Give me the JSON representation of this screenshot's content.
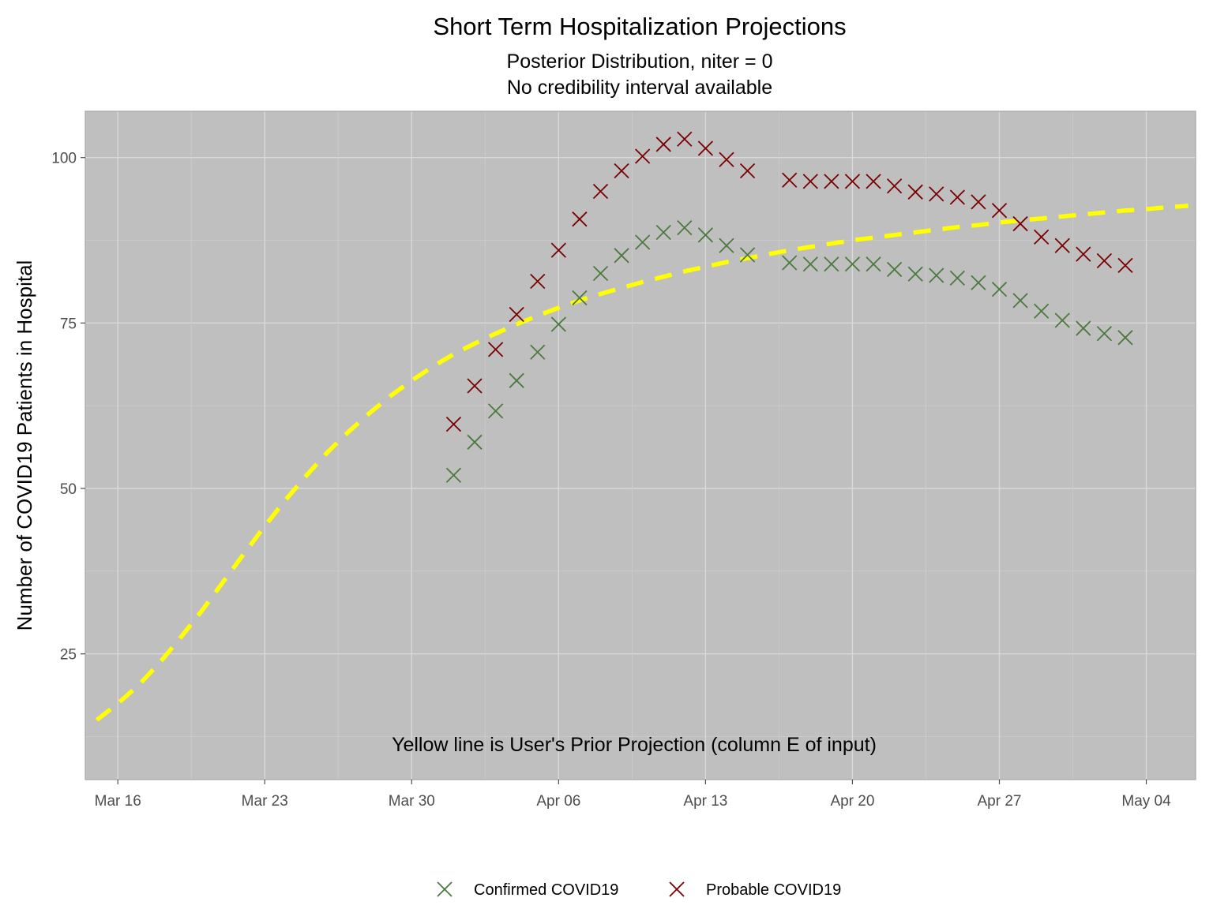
{
  "chart_data": {
    "type": "scatter",
    "title": "Short Term Hospitalization Projections",
    "subtitle_lines": [
      "Posterior Distribution, niter = 0",
      "No credibility interval available"
    ],
    "xlabel": "",
    "ylabel": "Number of COVID19 Patients in Hospital",
    "annotation": "Yellow line is User's Prior Projection (column E of input)",
    "x_tick_labels": [
      "Mar 16",
      "Mar 23",
      "Mar 30",
      "Apr 06",
      "Apr 13",
      "Apr 20",
      "Apr 27",
      "May 04"
    ],
    "x_tick_dates": [
      "2020-03-16",
      "2020-03-23",
      "2020-03-30",
      "2020-04-06",
      "2020-04-13",
      "2020-04-20",
      "2020-04-27",
      "2020-05-04"
    ],
    "y_ticks": [
      25,
      50,
      75,
      100
    ],
    "xlim": [
      "2020-03-15",
      "2020-05-06"
    ],
    "ylim": [
      6,
      107
    ],
    "grid": true,
    "legend_position": "bottom",
    "series": [
      {
        "name": "Confirmed COVID19",
        "marker": "x",
        "color": "#4a7a3d",
        "points": [
          [
            "2020-04-01",
            52
          ],
          [
            "2020-04-02",
            57
          ],
          [
            "2020-04-03",
            61.7
          ],
          [
            "2020-04-04",
            66.3
          ],
          [
            "2020-04-05",
            70.6
          ],
          [
            "2020-04-06",
            74.8
          ],
          [
            "2020-04-07",
            78.8
          ],
          [
            "2020-04-08",
            82.5
          ],
          [
            "2020-04-09",
            85.2
          ],
          [
            "2020-04-10",
            87.2
          ],
          [
            "2020-04-11",
            88.7
          ],
          [
            "2020-04-12",
            89.4
          ],
          [
            "2020-04-13",
            88.3
          ],
          [
            "2020-04-14",
            86.7
          ],
          [
            "2020-04-15",
            85.3
          ],
          [
            "2020-04-17",
            84.1
          ],
          [
            "2020-04-18",
            83.9
          ],
          [
            "2020-04-19",
            83.9
          ],
          [
            "2020-04-20",
            83.9
          ],
          [
            "2020-04-21",
            83.9
          ],
          [
            "2020-04-22",
            83.1
          ],
          [
            "2020-04-23",
            82.4
          ],
          [
            "2020-04-24",
            82.2
          ],
          [
            "2020-04-25",
            81.8
          ],
          [
            "2020-04-26",
            81.1
          ],
          [
            "2020-04-27",
            80.1
          ],
          [
            "2020-04-28",
            78.4
          ],
          [
            "2020-04-29",
            76.8
          ],
          [
            "2020-04-30",
            75.4
          ],
          [
            "2020-05-01",
            74.2
          ],
          [
            "2020-05-02",
            73.4
          ],
          [
            "2020-05-03",
            72.8
          ]
        ]
      },
      {
        "name": "Probable COVID19",
        "marker": "x",
        "color": "#7a0000",
        "points": [
          [
            "2020-04-01",
            59.7
          ],
          [
            "2020-04-02",
            65.5
          ],
          [
            "2020-04-03",
            71
          ],
          [
            "2020-04-04",
            76.3
          ],
          [
            "2020-04-05",
            81.3
          ],
          [
            "2020-04-06",
            86
          ],
          [
            "2020-04-07",
            90.7
          ],
          [
            "2020-04-08",
            94.9
          ],
          [
            "2020-04-09",
            98
          ],
          [
            "2020-04-10",
            100.2
          ],
          [
            "2020-04-11",
            102
          ],
          [
            "2020-04-12",
            102.8
          ],
          [
            "2020-04-13",
            101.4
          ],
          [
            "2020-04-14",
            99.7
          ],
          [
            "2020-04-15",
            98
          ],
          [
            "2020-04-17",
            96.6
          ],
          [
            "2020-04-18",
            96.4
          ],
          [
            "2020-04-19",
            96.4
          ],
          [
            "2020-04-20",
            96.4
          ],
          [
            "2020-04-21",
            96.4
          ],
          [
            "2020-04-22",
            95.7
          ],
          [
            "2020-04-23",
            94.8
          ],
          [
            "2020-04-24",
            94.5
          ],
          [
            "2020-04-25",
            94
          ],
          [
            "2020-04-26",
            93.3
          ],
          [
            "2020-04-27",
            92
          ],
          [
            "2020-04-28",
            90
          ],
          [
            "2020-04-29",
            88
          ],
          [
            "2020-04-30",
            86.7
          ],
          [
            "2020-05-01",
            85.4
          ],
          [
            "2020-05-02",
            84.4
          ],
          [
            "2020-05-03",
            83.7
          ]
        ]
      },
      {
        "name": "",
        "marker": "dashed-line",
        "color": "#ffff00",
        "points": [
          [
            "2020-03-15",
            15
          ],
          [
            "2020-03-16",
            17.5
          ],
          [
            "2020-03-17",
            20.3
          ],
          [
            "2020-03-18",
            23.7
          ],
          [
            "2020-03-19",
            27.5
          ],
          [
            "2020-03-20",
            31.5
          ],
          [
            "2020-03-21",
            35.8
          ],
          [
            "2020-03-22",
            40.1
          ],
          [
            "2020-03-23",
            44.3
          ],
          [
            "2020-03-24",
            48.3
          ],
          [
            "2020-03-25",
            52
          ],
          [
            "2020-03-26",
            55.5
          ],
          [
            "2020-03-27",
            58.6
          ],
          [
            "2020-03-28",
            61.4
          ],
          [
            "2020-03-29",
            64
          ],
          [
            "2020-03-30",
            66.3
          ],
          [
            "2020-03-31",
            68.4
          ],
          [
            "2020-04-01",
            70.3
          ],
          [
            "2020-04-02",
            71.9
          ],
          [
            "2020-04-03",
            73.4
          ],
          [
            "2020-04-04",
            74.8
          ],
          [
            "2020-04-05",
            76.1
          ],
          [
            "2020-04-06",
            77.3
          ],
          [
            "2020-04-07",
            78.4
          ],
          [
            "2020-04-08",
            79.4
          ],
          [
            "2020-04-09",
            80.3
          ],
          [
            "2020-04-10",
            81.2
          ],
          [
            "2020-04-11",
            82
          ],
          [
            "2020-04-12",
            82.8
          ],
          [
            "2020-04-13",
            83.5
          ],
          [
            "2020-04-14",
            84.2
          ],
          [
            "2020-04-15",
            84.8
          ],
          [
            "2020-04-16",
            85.4
          ],
          [
            "2020-04-17",
            86
          ],
          [
            "2020-04-18",
            86.5
          ],
          [
            "2020-04-19",
            87
          ],
          [
            "2020-04-20",
            87.5
          ],
          [
            "2020-04-21",
            87.9
          ],
          [
            "2020-04-22",
            88.3
          ],
          [
            "2020-04-23",
            88.7
          ],
          [
            "2020-04-24",
            89.1
          ],
          [
            "2020-04-25",
            89.5
          ],
          [
            "2020-04-26",
            89.8
          ],
          [
            "2020-04-27",
            90.2
          ],
          [
            "2020-04-28",
            90.5
          ],
          [
            "2020-04-29",
            90.8
          ],
          [
            "2020-04-30",
            91.1
          ],
          [
            "2020-05-01",
            91.4
          ],
          [
            "2020-05-02",
            91.7
          ],
          [
            "2020-05-03",
            92
          ],
          [
            "2020-05-04",
            92.2
          ],
          [
            "2020-05-05",
            92.5
          ],
          [
            "2020-05-06",
            92.7
          ]
        ]
      }
    ],
    "colors": {
      "panel_background": "#bfbfbf",
      "grid_major": "#d9d9d9",
      "grid_minor": "#cccccc",
      "panel_border": "#a6a6a6"
    }
  }
}
